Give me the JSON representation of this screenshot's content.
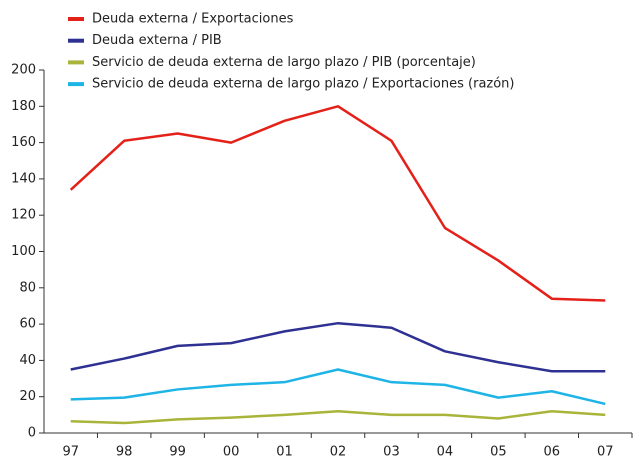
{
  "chart_data": {
    "type": "line",
    "categories": [
      "97",
      "98",
      "99",
      "00",
      "01",
      "02",
      "03",
      "04",
      "05",
      "06",
      "07"
    ],
    "series": [
      {
        "name": "Deuda externa / Exportaciones",
        "color": "#e32119",
        "values": [
          134,
          161,
          165,
          160,
          172,
          180,
          161,
          113,
          95,
          74,
          73
        ]
      },
      {
        "name": "Deuda externa / PIB",
        "color": "#2e3192",
        "values": [
          35,
          41,
          48,
          49.5,
          56,
          60.5,
          58,
          45,
          39,
          34,
          34
        ]
      },
      {
        "name": "Servicio de deuda externa de largo plazo / PIB (porcentaje)",
        "color": "#a8b43a",
        "values": [
          6.5,
          5.5,
          7.5,
          8.5,
          10,
          12,
          10,
          10,
          8,
          12,
          10
        ]
      },
      {
        "name": "Servicio de deuda externa de largo plazo / Exportaciones (razón)",
        "color": "#1fb4e6",
        "values": [
          18.5,
          19.5,
          24,
          26.5,
          28,
          35,
          28,
          26.5,
          19.5,
          23,
          16
        ]
      }
    ],
    "ylim": [
      0,
      200
    ],
    "yticks": [
      0,
      20,
      40,
      60,
      80,
      100,
      120,
      140,
      160,
      180,
      200
    ],
    "grid": false,
    "legend": "top-left"
  }
}
